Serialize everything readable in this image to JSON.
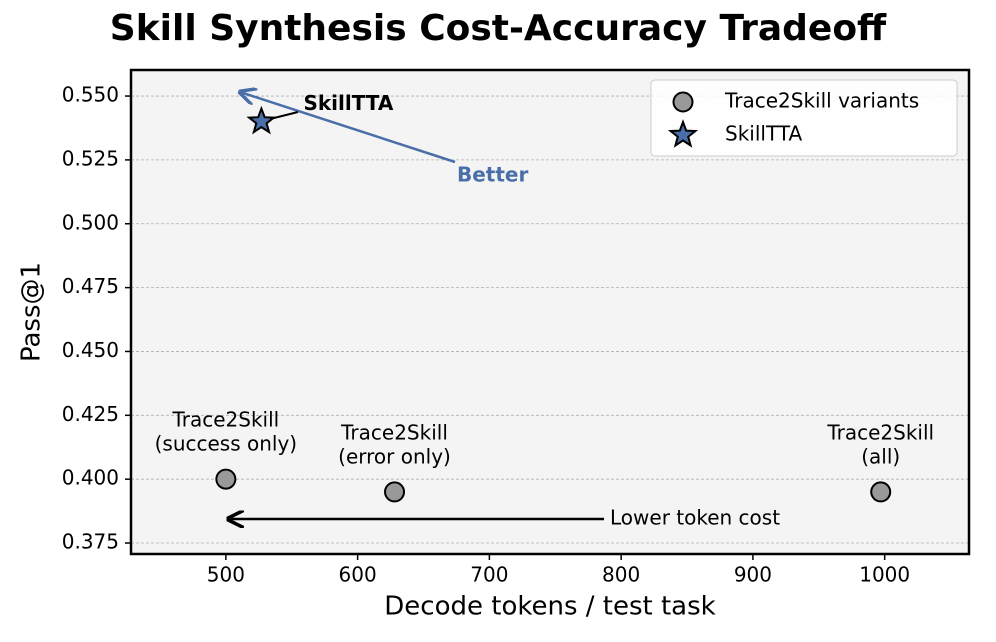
{
  "chart_data": {
    "type": "scatter",
    "title": "Skill Synthesis Cost-Accuracy Tradeoff",
    "x_label": "Decode tokens / test task",
    "y_label": "Pass@1",
    "xlim": [
      428,
      1064
    ],
    "ylim": [
      0.3707,
      0.5602
    ],
    "xticks": [
      500,
      600,
      700,
      800,
      900,
      1000
    ],
    "yticks": [
      0.375,
      {
        "value": 0.4,
        "label": "0.400"
      },
      0.425,
      {
        "value": 0.45,
        "label": "0.450"
      },
      0.475,
      {
        "value": 0.5,
        "label": "0.500"
      },
      0.525,
      {
        "value": 0.55,
        "label": "0.550"
      }
    ],
    "grid": true,
    "legend": "upper right",
    "series": [
      {
        "name": "Trace2Skill variants",
        "color": "#999999",
        "marker": "circle",
        "x": [
          500,
          628,
          997
        ],
        "values": [
          0.4,
          0.395,
          0.395
        ],
        "labels": [
          [
            "Trace2Skill",
            "(success only)"
          ],
          [
            "Trace2Skill",
            "(error only)"
          ],
          [
            "Trace2Skill",
            "(all)"
          ]
        ]
      },
      {
        "name": "SkillTTA",
        "color": "#4a6fa8",
        "marker": "star",
        "x": [
          527
        ],
        "values": [
          0.54
        ],
        "labels": [
          [
            "SkillTTA"
          ]
        ]
      }
    ],
    "annotations": [
      "Better",
      "Lower token cost"
    ]
  }
}
